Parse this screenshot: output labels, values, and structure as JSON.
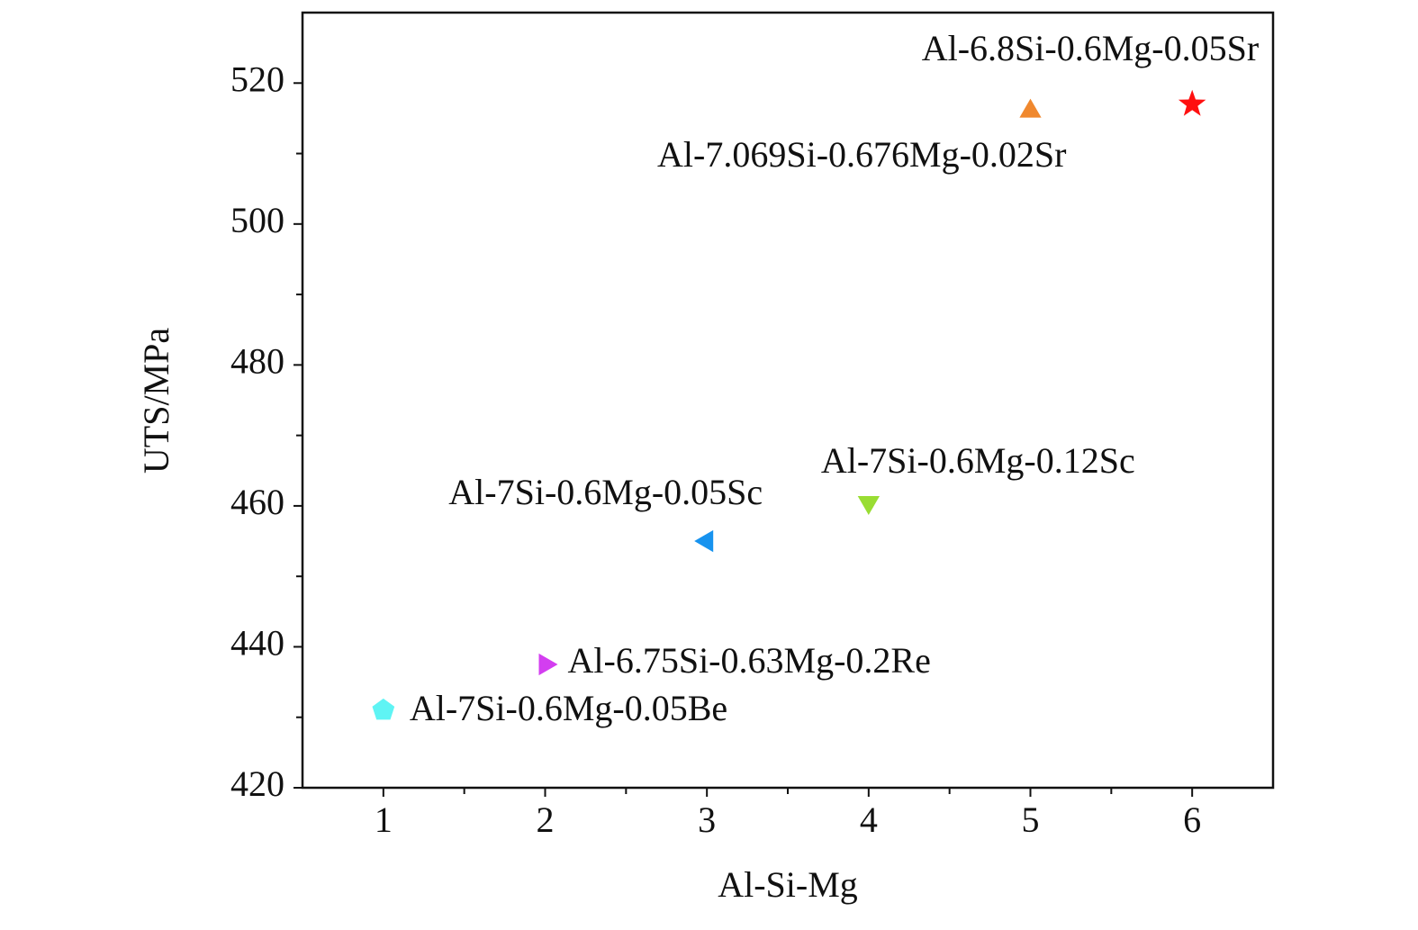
{
  "chart_data": {
    "type": "scatter",
    "x_label": "Al-Si-Mg",
    "y_label": "UTS/MPa",
    "xlim": [
      0.5,
      6.5
    ],
    "ylim": [
      420,
      530
    ],
    "xticks": [
      1,
      2,
      3,
      4,
      5,
      6
    ],
    "yticks": [
      420,
      440,
      460,
      480,
      500,
      520
    ],
    "xminorticks": [
      1.5,
      2.5,
      3.5,
      4.5,
      5.5
    ],
    "yminorticks": [
      430,
      450,
      470,
      490,
      510
    ],
    "series": [
      {
        "name": "Al-7Si-0.6Mg-0.05Be",
        "color": "#5ff4f4",
        "marker": "pentagon",
        "x": [
          1
        ],
        "values": [
          431
        ]
      },
      {
        "name": "Al-6.75Si-0.63Mg-0.2Re",
        "color": "#d33ef0",
        "marker": "triangle-right",
        "x": [
          2
        ],
        "values": [
          437.5
        ]
      },
      {
        "name": "Al-7Si-0.6Mg-0.05Sc",
        "color": "#1793ef",
        "marker": "triangle-left",
        "x": [
          3
        ],
        "values": [
          455
        ]
      },
      {
        "name": "Al-7Si-0.6Mg-0.12Sc",
        "color": "#99dd33",
        "marker": "triangle-down",
        "x": [
          4
        ],
        "values": [
          460.5
        ]
      },
      {
        "name": "Al-7.069Si-0.676Mg-0.02Sr",
        "color": "#f0882e",
        "marker": "triangle-up",
        "x": [
          5
        ],
        "values": [
          516
        ]
      },
      {
        "name": "Al-6.8Si-0.6Mg-0.05Sr",
        "color": "#ff1010",
        "marker": "star",
        "x": [
          6
        ],
        "values": [
          517
        ]
      }
    ]
  }
}
